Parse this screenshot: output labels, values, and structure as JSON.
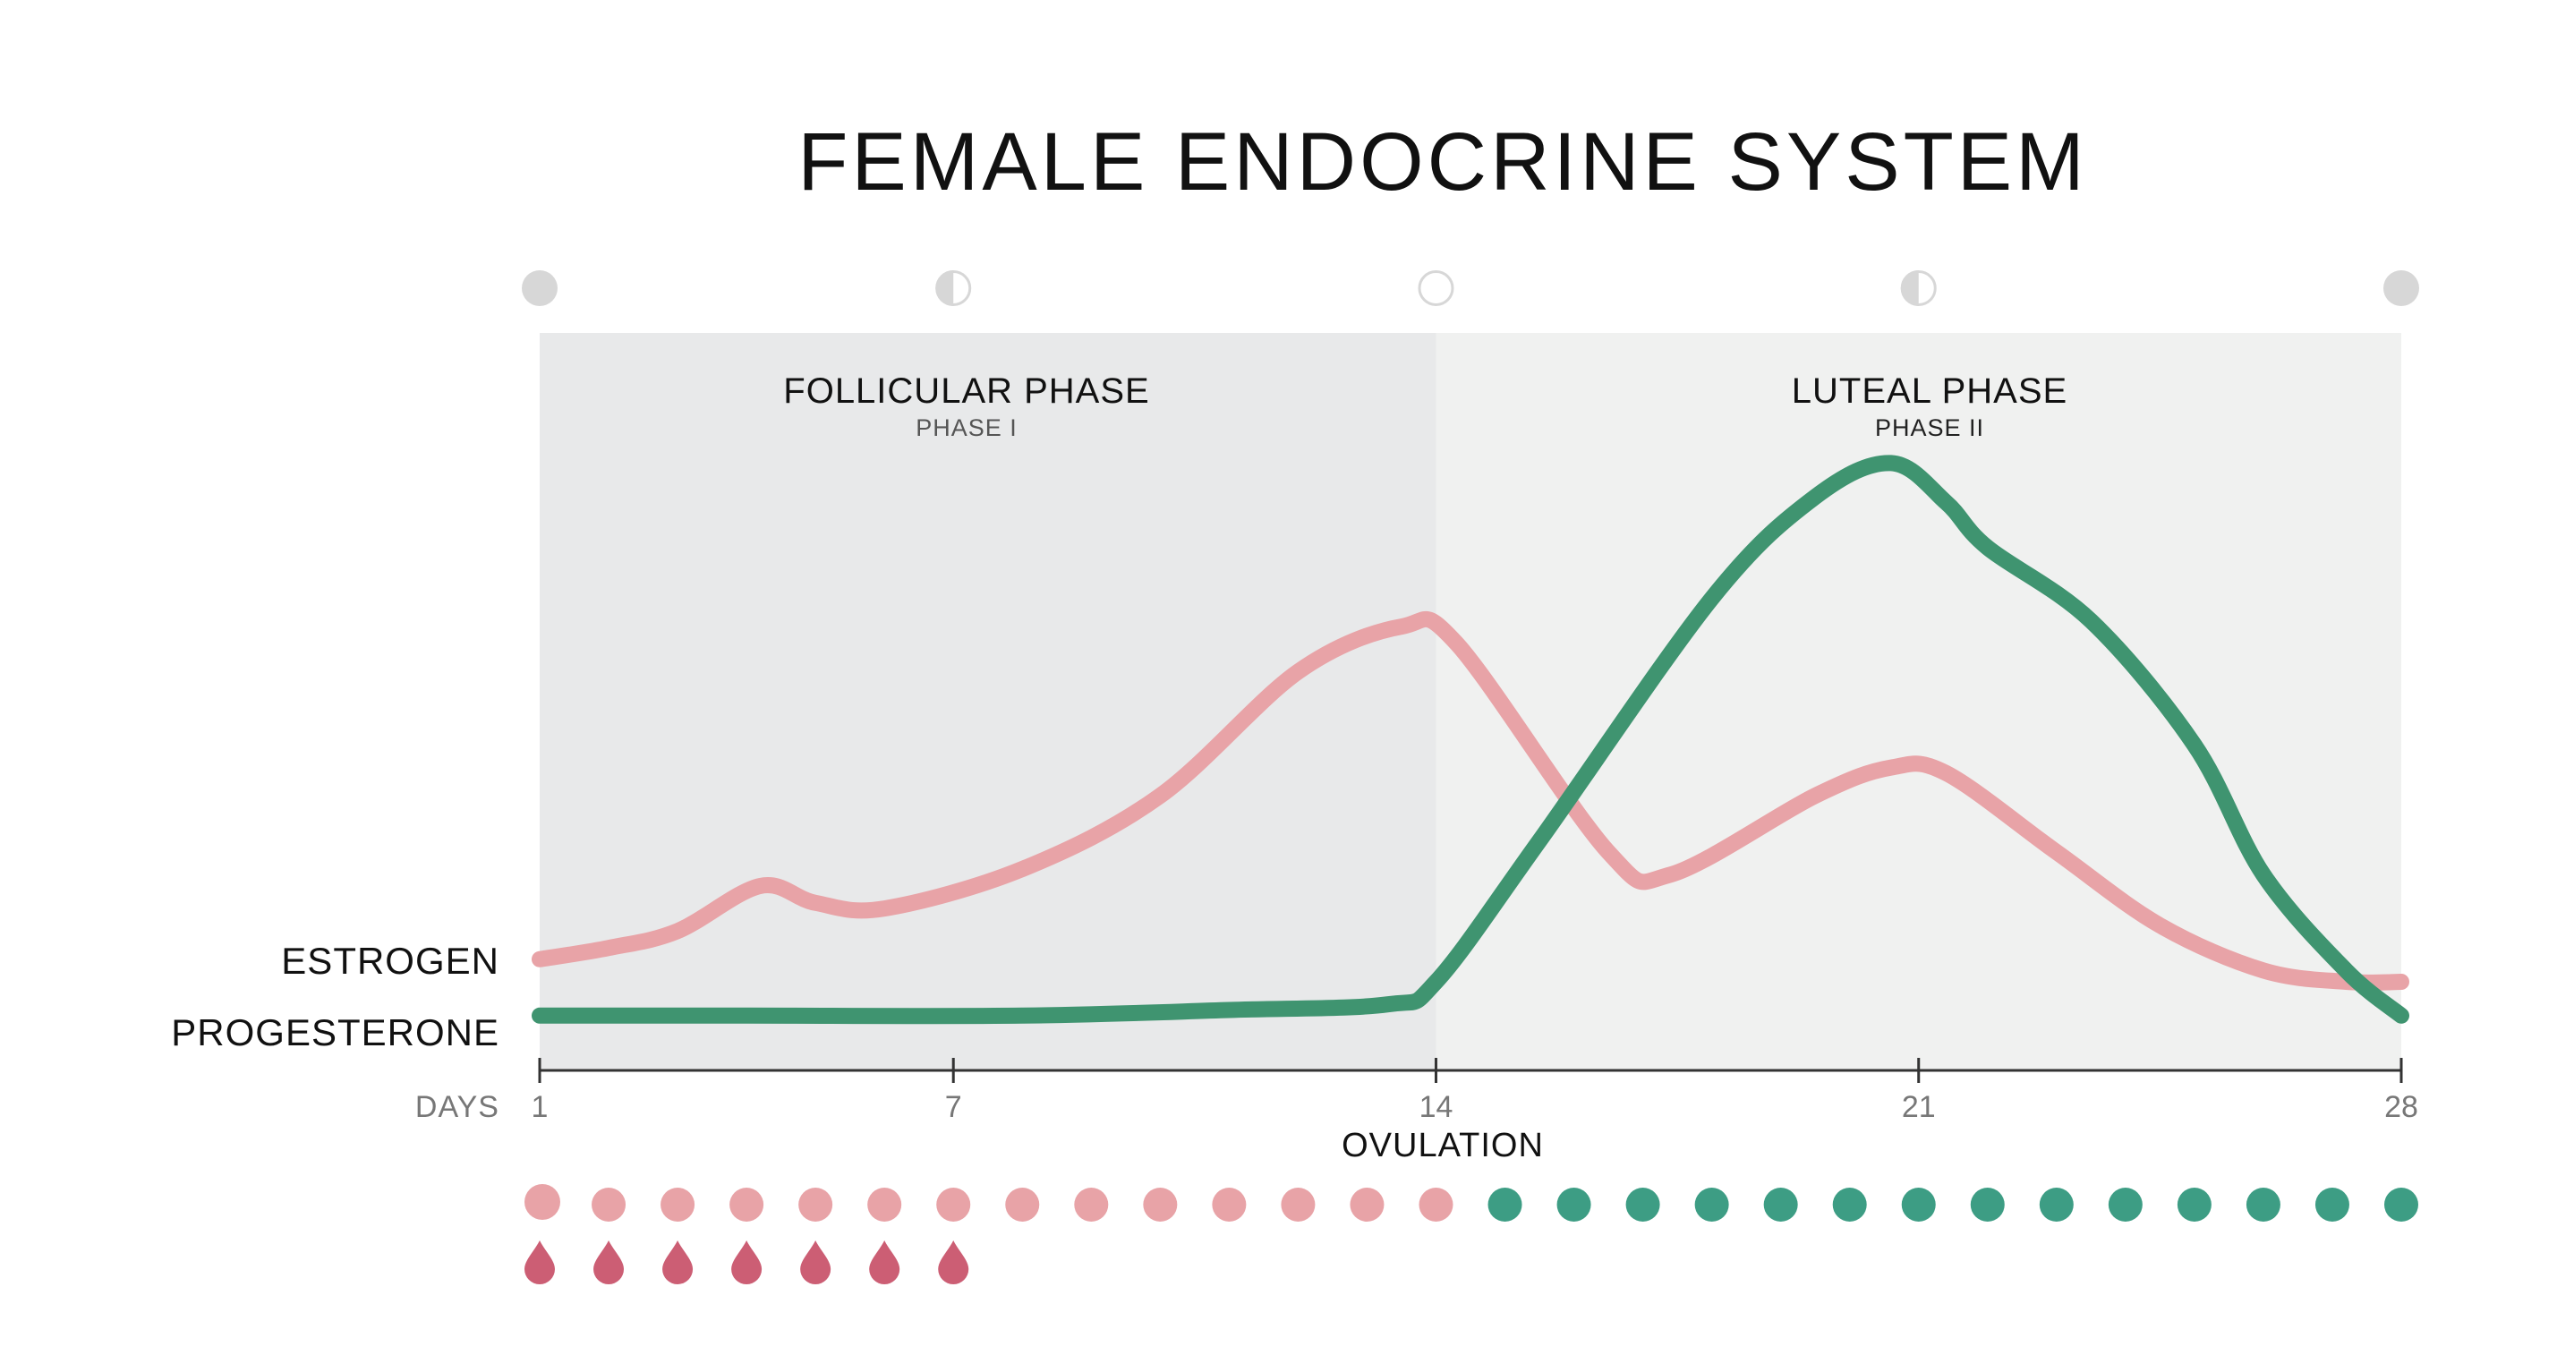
{
  "title": "FEMALE ENDOCRINE SYSTEM",
  "colors": {
    "estrogen": "#e8a3a7",
    "progesterone": "#3f9470",
    "teal_dot": "#3d9d84",
    "pink_dot": "#e8a3a7",
    "drop": "#cc5e74",
    "moon": "#d7d7d7",
    "phase1_bg": "#e8e9ea",
    "phase2_bg": "#f0f1f0"
  },
  "moon_phases": [
    "new-moon-icon",
    "first-quarter-moon-icon",
    "full-moon-icon",
    "last-quarter-moon-icon",
    "new-moon-icon"
  ],
  "chart_data": {
    "type": "line",
    "x_axis_label": "DAYS",
    "ticks": [
      {
        "day": 1,
        "label": "1"
      },
      {
        "day": 7,
        "label": "7"
      },
      {
        "day": 14,
        "label": "14"
      },
      {
        "day": 21,
        "label": "21"
      },
      {
        "day": 28,
        "label": "28"
      }
    ],
    "ovulation_label": "OVULATION",
    "ovulation_day": 14,
    "xlim": [
      1,
      28
    ],
    "ylim": [
      0,
      100
    ],
    "phases": [
      {
        "name": "FOLLICULAR PHASE",
        "sub": "PHASE I",
        "from": 1,
        "to": 14
      },
      {
        "name": "LUTEAL PHASE",
        "sub": "PHASE II",
        "from": 14,
        "to": 28
      }
    ],
    "series": [
      {
        "name": "ESTROGEN",
        "x": [
          1,
          2,
          3,
          4.2,
          5,
          6,
          8,
          10,
          12,
          13.5,
          14.3,
          16.5,
          17.4,
          19.5,
          20.6,
          21.4,
          23,
          24.5,
          26,
          27.2,
          28
        ],
        "y": [
          14,
          16,
          19,
          27,
          24,
          23,
          30,
          43,
          65,
          73,
          70,
          33,
          29,
          43,
          48,
          47,
          33,
          20,
          12,
          10,
          10
        ]
      },
      {
        "name": "PROGESTERONE",
        "x": [
          1,
          4,
          8,
          11,
          13.3,
          14,
          15.5,
          18,
          19.5,
          20.6,
          21.4,
          22,
          23.5,
          25,
          26,
          27.2,
          28
        ],
        "y": [
          4,
          4,
          4,
          5,
          6,
          10,
          35,
          78,
          96,
          102,
          95,
          87,
          74,
          52,
          29,
          12,
          4
        ]
      }
    ],
    "days_count": 28,
    "pink_dot_days": 14,
    "teal_dot_days": 14,
    "bleeding_days": 7
  }
}
